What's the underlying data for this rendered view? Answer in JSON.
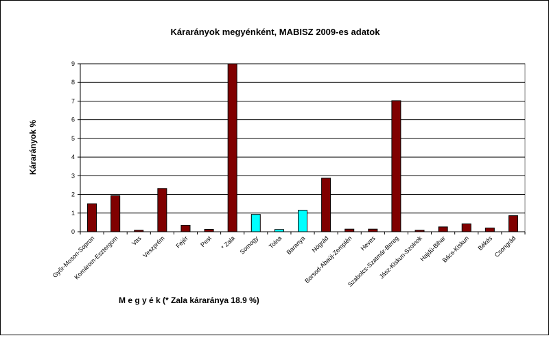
{
  "chart_data": {
    "type": "bar",
    "title": "Kárarányok megyénként, MABISZ 2009-es adatok",
    "xlabel": "M e g y é k (* Zala káraránya 18.9 %)",
    "ylabel": "Kárarányok %",
    "ylim": [
      0,
      9
    ],
    "yticks": [
      "0",
      "1",
      "2",
      "3",
      "4",
      "5",
      "6",
      "7",
      "8",
      "9"
    ],
    "grid": true,
    "categories": [
      "Győr-Moson-Sopron",
      "Komárom-Esztergom",
      "Vas",
      "Veszprém",
      "Fejér",
      "Pest",
      "* Zala",
      "Somogy",
      "Tolna",
      "Baranya",
      "Nógrád",
      "Borsod-Abaúj-Zemplén",
      "Heves",
      "Szabolcs-Szatmár-Bereg",
      "Jász-Kiskun-Szolnok",
      "Hajdú-Bihar",
      "Bács-Kiskun",
      "Békés",
      "Csongrád"
    ],
    "values": [
      1.5,
      1.93,
      0.08,
      2.32,
      0.35,
      0.13,
      9.0,
      0.93,
      0.12,
      1.15,
      2.87,
      0.14,
      0.14,
      7.02,
      0.08,
      0.26,
      0.42,
      0.2,
      0.86
    ],
    "colors": [
      "#800000",
      "#800000",
      "#800000",
      "#800000",
      "#800000",
      "#800000",
      "#800000",
      "#00ffff",
      "#00ffff",
      "#00ffff",
      "#800000",
      "#800000",
      "#800000",
      "#800000",
      "#800000",
      "#800000",
      "#800000",
      "#800000",
      "#800000"
    ],
    "plot_background": "#ffffff",
    "axis_color": "#808080",
    "grid_color": "#000000"
  }
}
